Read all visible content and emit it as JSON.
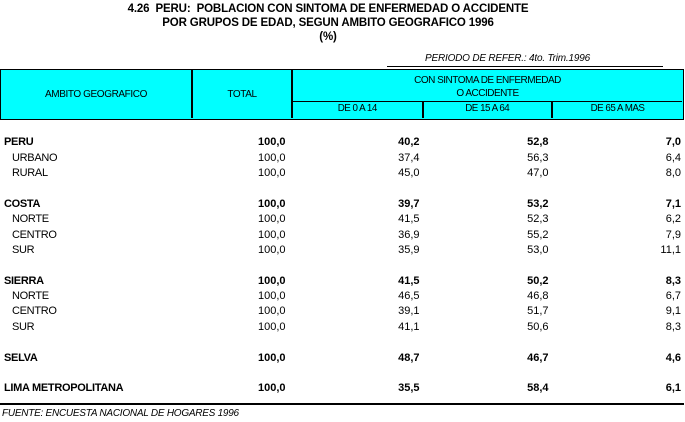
{
  "title": {
    "line1": "4.26  PERU:  POBLACION CON SINTOMA DE ENFERMEDAD O ACCIDENTE",
    "line2": "POR GRUPOS DE EDAD, SEGUN AMBITO GEOGRAFICO 1996",
    "line3": "(%)"
  },
  "period_note": "PERIODO DE REFER.: 4to. Trim.1996",
  "header": {
    "col_geo": "AMBITO GEOGRAFICO",
    "col_total": "TOTAL",
    "group_line1": "CON SINTOMA DE ENFERMEDAD",
    "group_line2": "O ACCIDENTE",
    "col_age_0_14": "DE 0 A 14",
    "col_age_15_64": "DE 15 A 64",
    "col_age_65_plus": "DE 65 A MAS"
  },
  "rows": [
    {
      "label": "PERU",
      "values": [
        "100,0",
        "40,2",
        "52,8",
        "7,0"
      ],
      "style": "group"
    },
    {
      "label": "URBANO",
      "values": [
        "100,0",
        "37,4",
        "56,3",
        "6,4"
      ],
      "style": "sub"
    },
    {
      "label": "RURAL",
      "values": [
        "100,0",
        "45,0",
        "47,0",
        "8,0"
      ],
      "style": "sub"
    },
    {
      "blank": true
    },
    {
      "label": "COSTA",
      "values": [
        "100,0",
        "39,7",
        "53,2",
        "7,1"
      ],
      "style": "group"
    },
    {
      "label": "NORTE",
      "values": [
        "100,0",
        "41,5",
        "52,3",
        "6,2"
      ],
      "style": "sub"
    },
    {
      "label": "CENTRO",
      "values": [
        "100,0",
        "36,9",
        "55,2",
        "7,9"
      ],
      "style": "sub"
    },
    {
      "label": "SUR",
      "values": [
        "100,0",
        "35,9",
        "53,0",
        "11,1"
      ],
      "style": "sub"
    },
    {
      "blank": true
    },
    {
      "label": "SIERRA",
      "values": [
        "100,0",
        "41,5",
        "50,2",
        "8,3"
      ],
      "style": "group"
    },
    {
      "label": "NORTE",
      "values": [
        "100,0",
        "46,5",
        "46,8",
        "6,7"
      ],
      "style": "sub"
    },
    {
      "label": "CENTRO",
      "values": [
        "100,0",
        "39,1",
        "51,7",
        "9,1"
      ],
      "style": "sub"
    },
    {
      "label": "SUR",
      "values": [
        "100,0",
        "41,1",
        "50,6",
        "8,3"
      ],
      "style": "sub"
    },
    {
      "blank": true
    },
    {
      "label": "SELVA",
      "values": [
        "100,0",
        "48,7",
        "46,7",
        "4,6"
      ],
      "style": "group"
    },
    {
      "blank": true
    },
    {
      "label": "LIMA METROPOLITANA",
      "values": [
        "100,0",
        "35,5",
        "58,4",
        "6,1"
      ],
      "style": "group"
    }
  ],
  "source_note": "FUENTE: ENCUESTA NACIONAL DE HOGARES 1996",
  "colors": {
    "header_bg": "#00FFFF",
    "border": "#000000",
    "text": "#000000",
    "page_bg": "#FFFFFF"
  }
}
